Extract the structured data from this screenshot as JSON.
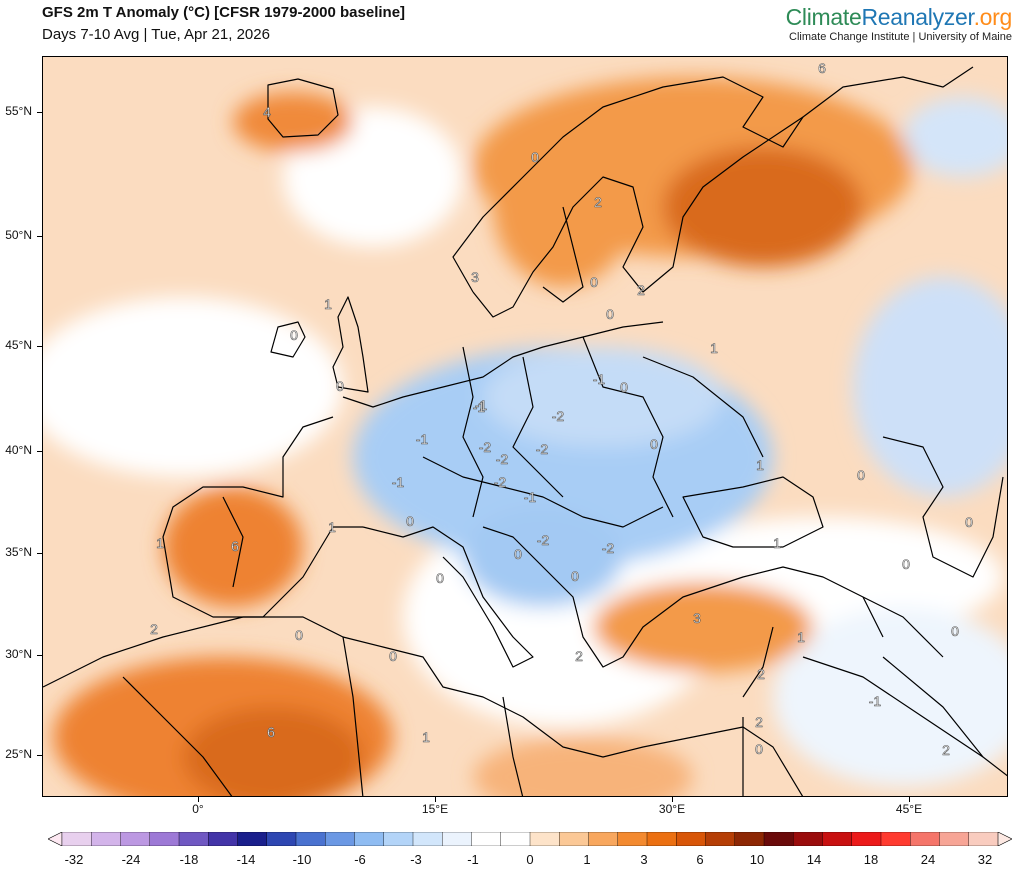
{
  "header": {
    "title": "GFS 2m T Anomaly (°C) [CFSR 1979-2000 baseline]",
    "subtitle": "Days 7-10 Avg | Tue, Apr 21, 2026",
    "brand": {
      "part1": "Climate",
      "part2": "Reanalyzer",
      "part3": ".org"
    },
    "brand_sub": "Climate Change Institute | University of Maine"
  },
  "map": {
    "lat_labels": [
      "55°N",
      "50°N",
      "45°N",
      "40°N",
      "35°N",
      "30°N",
      "25°N"
    ],
    "lon_labels": [
      "0°",
      "15°E",
      "30°E",
      "45°E"
    ],
    "contour_labels": [
      "4",
      "6",
      "0",
      "2",
      "3",
      "0",
      "2",
      "1",
      "0",
      "0",
      "1",
      "0",
      "-1",
      "-1",
      "0",
      "-1",
      "-1",
      "-2",
      "-2",
      "-2",
      "-2",
      "0",
      "-1",
      "-2",
      "-1",
      "0",
      "1",
      "1",
      "1",
      "6",
      "0",
      "0",
      "-2",
      "-2",
      "0",
      "0",
      "0",
      "1",
      "2",
      "0",
      "3",
      "1",
      "0",
      "0",
      "2",
      "2",
      "6",
      "1",
      "2",
      "0",
      "-1",
      "2",
      "0"
    ]
  },
  "colorbar": {
    "labels": [
      "-32",
      "-24",
      "-18",
      "-14",
      "-10",
      "-6",
      "-3",
      "-1",
      "0",
      "1",
      "3",
      "6",
      "10",
      "14",
      "18",
      "24",
      "32"
    ],
    "colors": [
      "#fde8f2",
      "#e8d0ee",
      "#d3b4ea",
      "#bc98e2",
      "#9d79d6",
      "#7058c2",
      "#4334a8",
      "#1a1f8c",
      "#2e47b2",
      "#4a72d0",
      "#6b98e4",
      "#8fbcf2",
      "#b3d4f8",
      "#d2e6fb",
      "#ebf3fd",
      "#ffffff",
      "#ffffff",
      "#fde3c9",
      "#fbc896",
      "#f8a75e",
      "#f38a30",
      "#eb7012",
      "#d85608",
      "#b53e06",
      "#8d2704",
      "#6a0a0a",
      "#9a0c0c",
      "#c81010",
      "#ec1a1a",
      "#ff3b30",
      "#f5756a",
      "#f7a596",
      "#f9ccbf",
      "#fde9e3"
    ]
  }
}
